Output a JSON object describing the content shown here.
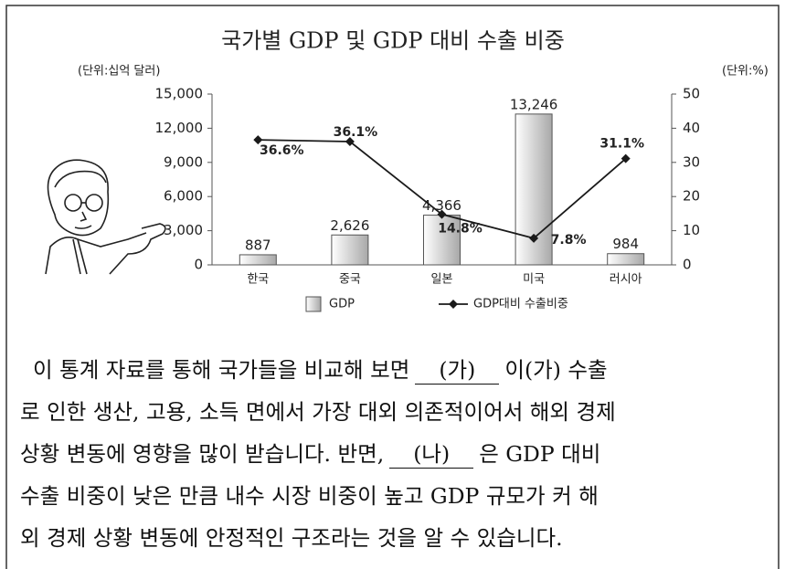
{
  "chart_data": {
    "type": "bar",
    "title": "국가별 GDP 및 GDP 대비 수출 비중",
    "y_label": "(단위:십억 달러)",
    "y2_label": "(단위:%)",
    "categories": [
      "한국",
      "중국",
      "일본",
      "미국",
      "러시아"
    ],
    "series": [
      {
        "name": "GDP",
        "type": "bar",
        "color": "#a8a8a8",
        "values": [
          887,
          2626,
          4366,
          13246,
          984
        ],
        "value_labels": [
          "887",
          "2,626",
          "4,366",
          "13,246",
          "984"
        ]
      },
      {
        "name": "GDP대비 수출비중",
        "type": "line",
        "axis": "y2",
        "color": "#1a1a1a",
        "values": [
          36.6,
          36.1,
          14.8,
          7.8,
          31.1
        ],
        "value_labels": [
          "36.6%",
          "36.1%",
          "14.8%",
          "7.8%",
          "31.1%"
        ]
      }
    ],
    "ylim": [
      0,
      15000
    ],
    "yticks": [
      0,
      {
        "value": 3000,
        "label": "3,000"
      },
      {
        "value": 6000,
        "label": "6,000"
      },
      {
        "value": 9000,
        "label": "9,000"
      },
      {
        "value": 12000,
        "label": "12,000"
      },
      {
        "value": 15000,
        "label": "15,000"
      }
    ],
    "y2lim": [
      0,
      50
    ],
    "y2ticks": [
      0,
      10,
      20,
      30,
      40,
      50
    ],
    "legend": "bottom"
  },
  "passage": {
    "lines": [
      [
        {
          "text": "이 통계 자료를 통해 국가들을 비교해 보면"
        },
        {
          "text": "(가)",
          "underline": true
        },
        {
          "text": "이(가) 수출"
        }
      ],
      [
        {
          "text": "로 인한 생산, 고용, 소득 면에서 가장 대외 의존적이어서 해외 경제"
        }
      ],
      [
        {
          "text": "상황 변동에 영향을 많이 받습니다. 반면,"
        },
        {
          "text": "(나)",
          "underline": true
        },
        {
          "text": "은 GDP 대비"
        }
      ],
      [
        {
          "text": "수출 비중이 낮은 만큼 내수 시장 비중이 높고 GDP 규모가 커 해"
        }
      ],
      [
        {
          "text": "외 경제 상황 변동에 안정적인 구조라는 것을 알 수 있습니다."
        }
      ]
    ]
  }
}
